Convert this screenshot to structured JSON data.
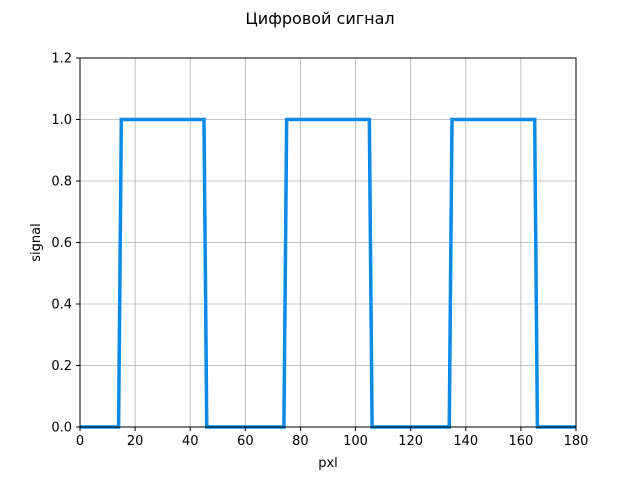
{
  "chart_data": {
    "type": "line",
    "title": "Цифровой сигнал",
    "xlabel": "pxl",
    "ylabel": "signal",
    "xlim": [
      0,
      180
    ],
    "ylim": [
      0.0,
      1.2
    ],
    "xticks": [
      0,
      20,
      40,
      60,
      80,
      100,
      120,
      140,
      160,
      180
    ],
    "yticks": [
      0.0,
      0.2,
      0.4,
      0.6,
      0.8,
      1.0,
      1.2
    ],
    "xtick_labels": [
      "0",
      "20",
      "40",
      "60",
      "80",
      "100",
      "120",
      "140",
      "160",
      "180"
    ],
    "ytick_labels": [
      "0.0",
      "0.2",
      "0.4",
      "0.6",
      "0.8",
      "1.0",
      "1.2"
    ],
    "grid": true,
    "series": [
      {
        "color": "#0b8be6",
        "x": [
          0,
          14,
          15,
          45,
          46,
          74,
          75,
          105,
          106,
          134,
          135,
          165,
          166,
          180
        ],
        "y": [
          0,
          0,
          1,
          1,
          0,
          0,
          1,
          1,
          0,
          0,
          1,
          1,
          0,
          0
        ]
      }
    ]
  }
}
